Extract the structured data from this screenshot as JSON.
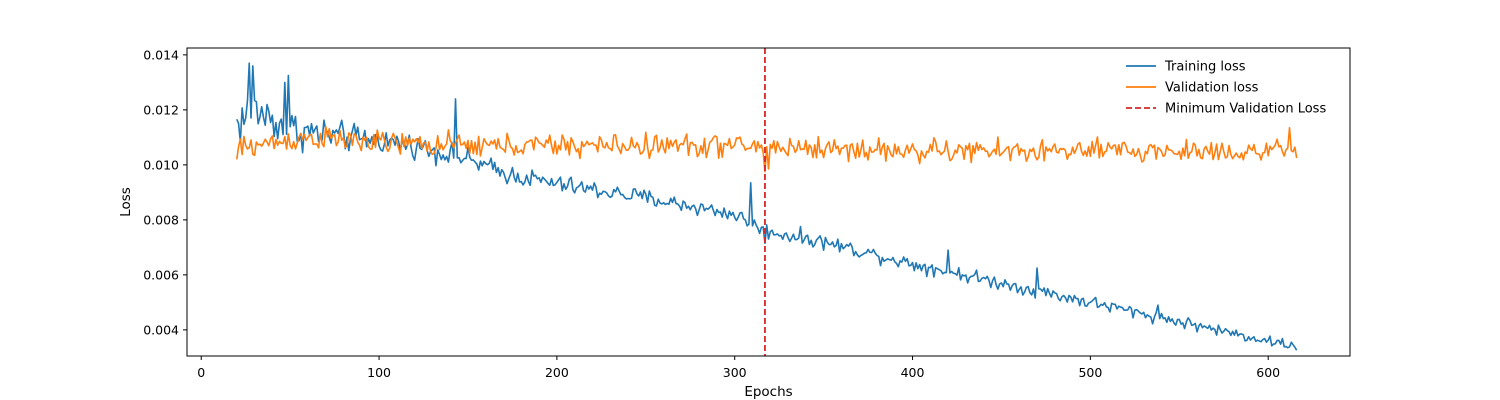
{
  "chart_data": {
    "type": "line",
    "title": "",
    "xlabel": "Epochs",
    "ylabel": "Loss",
    "xlim": [
      -8,
      646
    ],
    "ylim": [
      0.00305,
      0.01425
    ],
    "xticks": [
      0,
      100,
      200,
      300,
      400,
      500,
      600
    ],
    "yticks": [
      0.004,
      0.006,
      0.008,
      0.01,
      0.012,
      0.014
    ],
    "ytick_labels": [
      "0.004",
      "0.006",
      "0.008",
      "0.010",
      "0.012",
      "0.014"
    ],
    "grid": false,
    "legend_position": "top-right",
    "x_start": 20,
    "x_end": 616,
    "series": [
      {
        "name": "Training loss",
        "color": "#1f77b4",
        "line_style": "solid",
        "anchors": [
          [
            20,
            0.0115
          ],
          [
            30,
            0.012
          ],
          [
            50,
            0.0113
          ],
          [
            80,
            0.011
          ],
          [
            100,
            0.0109
          ],
          [
            120,
            0.0107
          ],
          [
            150,
            0.0102
          ],
          [
            170,
            0.0097
          ],
          [
            200,
            0.0093
          ],
          [
            250,
            0.0088
          ],
          [
            300,
            0.0082
          ],
          [
            317,
            0.0076
          ],
          [
            350,
            0.0072
          ],
          [
            400,
            0.0064
          ],
          [
            450,
            0.0057
          ],
          [
            500,
            0.005
          ],
          [
            550,
            0.0043
          ],
          [
            600,
            0.0036
          ],
          [
            616,
            0.0034
          ]
        ],
        "noise": [
          [
            20,
            0.001
          ],
          [
            60,
            0.0007
          ],
          [
            100,
            0.00045
          ],
          [
            200,
            0.00035
          ],
          [
            300,
            0.0003
          ],
          [
            400,
            0.00028
          ],
          [
            500,
            0.00025
          ],
          [
            616,
            0.0002
          ]
        ],
        "spikes": [
          [
            27,
            0.0137
          ],
          [
            29,
            0.0136
          ],
          [
            47,
            0.013
          ],
          [
            49,
            0.01325
          ],
          [
            143,
            0.0124
          ],
          [
            309,
            0.00935
          ],
          [
            317,
            0.00715
          ],
          [
            420,
            0.0069
          ],
          [
            470,
            0.00625
          ],
          [
            538,
            0.0049
          ]
        ]
      },
      {
        "name": "Validation loss",
        "color": "#ff7f0e",
        "line_style": "solid",
        "anchors": [
          [
            20,
            0.0106
          ],
          [
            60,
            0.011
          ],
          [
            100,
            0.0108
          ],
          [
            150,
            0.0107
          ],
          [
            200,
            0.0107
          ],
          [
            300,
            0.0107
          ],
          [
            400,
            0.0105
          ],
          [
            500,
            0.0105
          ],
          [
            616,
            0.0105
          ]
        ],
        "noise": [
          [
            20,
            0.00045
          ],
          [
            616,
            0.00045
          ]
        ],
        "spikes": [
          [
            20,
            0.0102
          ],
          [
            317,
            0.00975
          ],
          [
            319,
            0.00985
          ],
          [
            612,
            0.01135
          ],
          [
            616,
            0.01025
          ]
        ]
      }
    ],
    "reference_line": {
      "name": "Minimum Validation Loss",
      "x": 317,
      "color": "#d62728",
      "line_style": "dashed"
    }
  }
}
